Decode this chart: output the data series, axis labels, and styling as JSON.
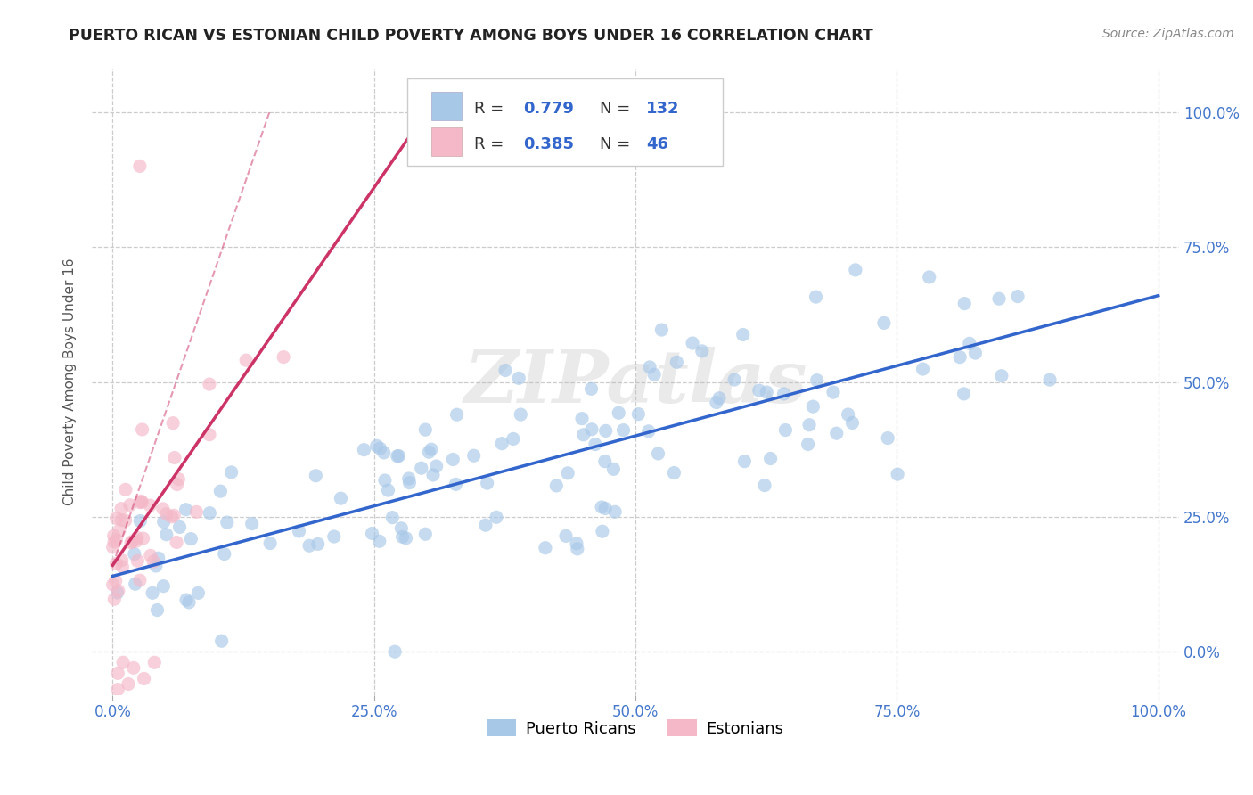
{
  "title": "PUERTO RICAN VS ESTONIAN CHILD POVERTY AMONG BOYS UNDER 16 CORRELATION CHART",
  "source": "Source: ZipAtlas.com",
  "ylabel": "Child Poverty Among Boys Under 16",
  "xlim": [
    -0.02,
    1.02
  ],
  "ylim": [
    -0.08,
    1.08
  ],
  "xticks": [
    0.0,
    0.25,
    0.5,
    0.75,
    1.0
  ],
  "yticks": [
    0.0,
    0.25,
    0.5,
    0.75,
    1.0
  ],
  "xticklabels": [
    "0.0%",
    "25.0%",
    "50.0%",
    "75.0%",
    "100.0%"
  ],
  "yticklabels": [
    "0.0%",
    "25.0%",
    "50.0%",
    "75.0%",
    "100.0%"
  ],
  "blue_R": 0.779,
  "blue_N": 132,
  "pink_R": 0.385,
  "pink_N": 46,
  "blue_color": "#a8c8e8",
  "pink_color": "#f4b8c8",
  "blue_line_color": "#3366cc",
  "pink_line_color": "#cc3366",
  "watermark_text": "ZIPatlas",
  "legend_labels": [
    "Puerto Ricans",
    "Estonians"
  ],
  "background_color": "#ffffff",
  "grid_color": "#cccccc",
  "title_color": "#333333",
  "tick_color": "#4477cc",
  "blue_seed": 12,
  "pink_seed": 99,
  "blue_line_slope": 0.52,
  "blue_line_intercept": 0.14,
  "pink_line_slope": 2.8,
  "pink_line_intercept": 0.16
}
